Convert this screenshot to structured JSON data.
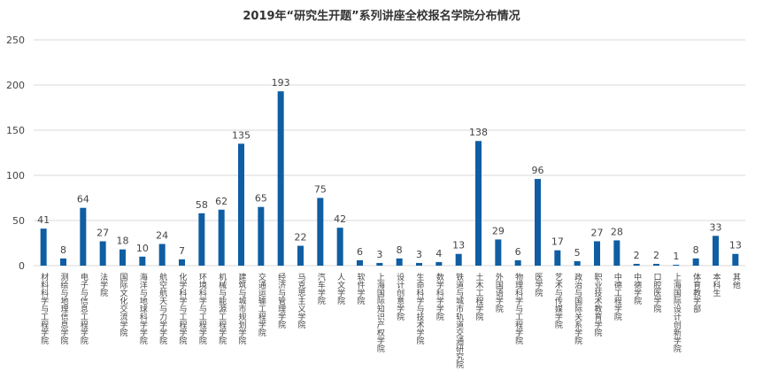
{
  "chart_data": {
    "type": "bar",
    "title": "2019年“研究生开题”系列讲座全校报名学院分布情况",
    "categories": [
      "材料科学与工程学院",
      "测绘与地理信息学院",
      "电子与信息工程学院",
      "法学院",
      "国际文化交流学院",
      "海洋与地球科学学院",
      "航空航天与力学学院",
      "化学科学与工程学院",
      "环境科学与工程学院",
      "机械与能源工程学院",
      "建筑与城市规划学院",
      "交通运输工程学院",
      "经济与管理学院",
      "马克思主义学院",
      "汽车学院",
      "人文学院",
      "软件学院",
      "上海国际知识产权学院",
      "设计创意学院",
      "生命科学与技术学院",
      "数学科学学院",
      "铁道与城市轨道交通研究院",
      "土木工程学院",
      "外国语学院",
      "物理科学与工程学院",
      "医学院",
      "艺术与传媒学院",
      "政治与国际关系学院",
      "职业技术教育学院",
      "中德工程学院",
      "中德学院",
      "口腔医学院",
      "上海国际设计创新学院",
      "体育教学部",
      "本科生",
      "其他"
    ],
    "values": [
      41,
      8,
      64,
      27,
      18,
      10,
      24,
      7,
      58,
      62,
      135,
      65,
      193,
      22,
      75,
      42,
      6,
      3,
      8,
      3,
      4,
      13,
      138,
      29,
      6,
      96,
      17,
      5,
      27,
      28,
      2,
      2,
      1,
      8,
      33,
      13
    ],
    "color": "#0f5ea3",
    "ylim": [
      0,
      250
    ],
    "yticks": [
      0,
      50,
      100,
      150,
      200,
      250
    ],
    "grid": true
  }
}
